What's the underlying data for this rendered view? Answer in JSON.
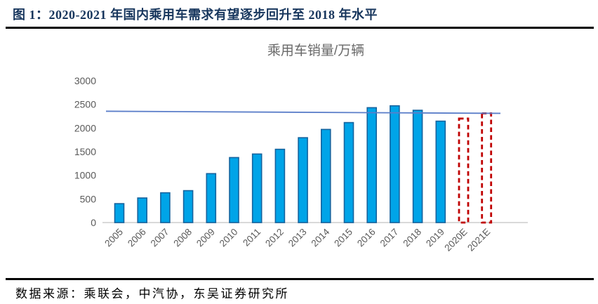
{
  "header": {
    "title": "图 1：2020-2021 年国内乘用车需求有望逐步回升至 2018 年水平",
    "title_color": "#17365D"
  },
  "chart_data": {
    "type": "bar",
    "title": "乘用车销量/万辆",
    "categories": [
      "2005",
      "2006",
      "2007",
      "2008",
      "2009",
      "2010",
      "2011",
      "2012",
      "2013",
      "2014",
      "2015",
      "2016",
      "2017",
      "2018",
      "2019",
      "2020E",
      "2021E"
    ],
    "values": [
      400,
      520,
      630,
      675,
      1035,
      1375,
      1450,
      1550,
      1795,
      1970,
      2115,
      2430,
      2470,
      2375,
      2145,
      2200,
      2310
    ],
    "forecast_categories": [
      "2020E",
      "2021E"
    ],
    "yticks": [
      0,
      500,
      1000,
      1500,
      2000,
      2500,
      3000
    ],
    "ylim": [
      0,
      3000
    ],
    "xlabel": "",
    "ylabel": "",
    "grid": false,
    "legend": false,
    "x_label_rotation_deg": 45,
    "reference_line": {
      "value_start": 2355,
      "value_end": 2310,
      "color": "#5B7EC9"
    },
    "colors": {
      "bar_fill": "#00A4E8",
      "bar_stroke": "#15639E",
      "forecast_stroke": "#C00000",
      "axis_baseline": "#D9D9D9",
      "tick_text": "#595959",
      "title_text": "#696969"
    }
  },
  "footer": {
    "source": "数据来源：乘联会，中汽协，东吴证券研究所"
  }
}
